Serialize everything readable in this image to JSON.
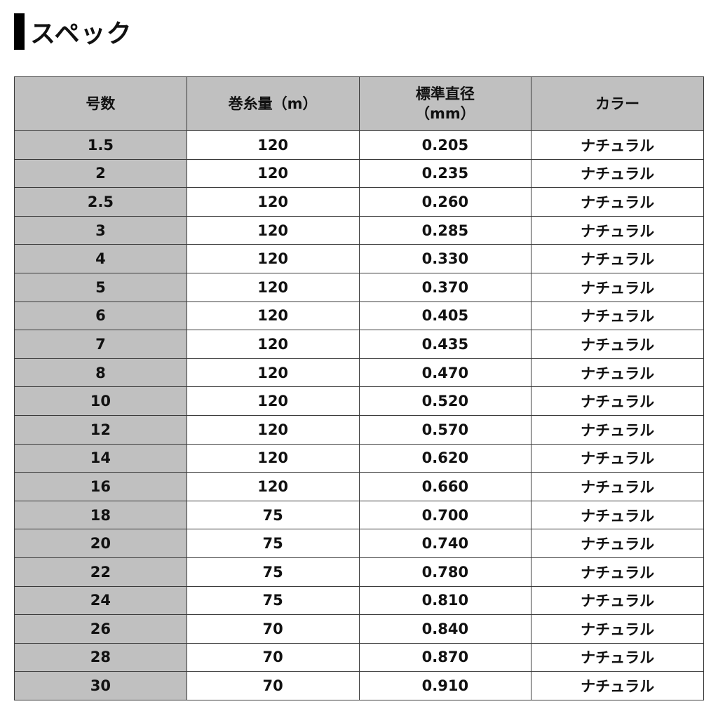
{
  "title": "スペック",
  "table": {
    "headers": [
      "号数",
      "巻糸量（m）",
      "標準直径\n（mm）",
      "カラー"
    ],
    "rows": [
      [
        "1.5",
        "120",
        "0.205",
        "ナチュラル"
      ],
      [
        "2",
        "120",
        "0.235",
        "ナチュラル"
      ],
      [
        "2.5",
        "120",
        "0.260",
        "ナチュラル"
      ],
      [
        "3",
        "120",
        "0.285",
        "ナチュラル"
      ],
      [
        "4",
        "120",
        "0.330",
        "ナチュラル"
      ],
      [
        "5",
        "120",
        "0.370",
        "ナチュラル"
      ],
      [
        "6",
        "120",
        "0.405",
        "ナチュラル"
      ],
      [
        "7",
        "120",
        "0.435",
        "ナチュラル"
      ],
      [
        "8",
        "120",
        "0.470",
        "ナチュラル"
      ],
      [
        "10",
        "120",
        "0.520",
        "ナチュラル"
      ],
      [
        "12",
        "120",
        "0.570",
        "ナチュラル"
      ],
      [
        "14",
        "120",
        "0.620",
        "ナチュラル"
      ],
      [
        "16",
        "120",
        "0.660",
        "ナチュラル"
      ],
      [
        "18",
        "75",
        "0.700",
        "ナチュラル"
      ],
      [
        "20",
        "75",
        "0.740",
        "ナチュラル"
      ],
      [
        "22",
        "75",
        "0.780",
        "ナチュラル"
      ],
      [
        "24",
        "75",
        "0.810",
        "ナチュラル"
      ],
      [
        "26",
        "70",
        "0.840",
        "ナチュラル"
      ],
      [
        "28",
        "70",
        "0.870",
        "ナチュラル"
      ],
      [
        "30",
        "70",
        "0.910",
        "ナチュラル"
      ]
    ]
  },
  "colors": {
    "header_bg": "#c0c0c0",
    "border": "#3a3a3a"
  }
}
